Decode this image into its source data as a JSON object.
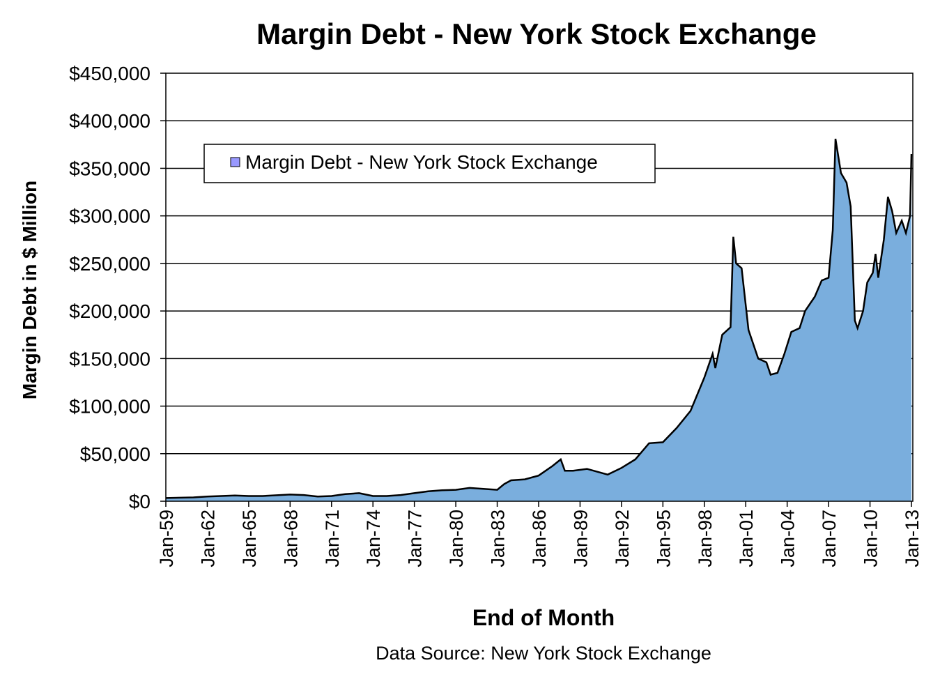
{
  "chart_data": {
    "type": "area",
    "title": "Margin Debt - New York Stock Exchange",
    "xlabel": "End of Month",
    "ylabel": "Margin Debt in $ Million",
    "source": "Data Source: New York Stock Exchange",
    "legend": {
      "label": "Margin Debt - New York Stock Exchange",
      "placement": "top-left"
    },
    "ylim": [
      0,
      450000
    ],
    "xlim": [
      1959,
      2013
    ],
    "grid": true,
    "colors": {
      "fill": "#7aaedd",
      "line": "#000000",
      "legend_swatch": "#9999ff"
    },
    "yticks": [
      0,
      50000,
      100000,
      150000,
      200000,
      250000,
      300000,
      350000,
      400000,
      450000
    ],
    "ytick_labels": [
      "$0",
      "$50,000",
      "$100,000",
      "$150,000",
      "$200,000",
      "$250,000",
      "$300,000",
      "$350,000",
      "$400,000",
      "$450,000"
    ],
    "xtick_labels": [
      "Jan-59",
      "Jan-62",
      "Jan-65",
      "Jan-68",
      "Jan-71",
      "Jan-74",
      "Jan-77",
      "Jan-80",
      "Jan-83",
      "Jan-86",
      "Jan-89",
      "Jan-92",
      "Jan-95",
      "Jan-98",
      "Jan-01",
      "Jan-04",
      "Jan-07",
      "Jan-10",
      "Jan-13"
    ],
    "series": [
      {
        "name": "Margin Debt - New York Stock Exchange",
        "x": [
          1959,
          1961,
          1962,
          1964,
          1965,
          1966,
          1968,
          1969,
          1970,
          1971,
          1972,
          1973,
          1974,
          1975,
          1976,
          1977,
          1978,
          1979,
          1980,
          1981,
          1982,
          1983,
          1983.5,
          1984,
          1985,
          1986,
          1987,
          1987.6,
          1987.9,
          1988.5,
          1989.5,
          1990.5,
          1991,
          1992,
          1993,
          1994,
          1995,
          1996,
          1997,
          1998,
          1998.6,
          1998.8,
          1999.3,
          1999.9,
          2000.1,
          2000.3,
          2000.7,
          2001.2,
          2001.9,
          2002.5,
          2002.8,
          2003.3,
          2003.8,
          2004.3,
          2004.9,
          2005.3,
          2006,
          2006.5,
          2007,
          2007.3,
          2007.5,
          2007.9,
          2008.3,
          2008.6,
          2008.9,
          2009.1,
          2009.5,
          2009.8,
          2010.2,
          2010.4,
          2010.6,
          2011,
          2011.3,
          2011.6,
          2011.9,
          2012.3,
          2012.6,
          2012.9,
          2013
        ],
        "values": [
          3400,
          4000,
          5000,
          6000,
          5500,
          5500,
          7000,
          6500,
          5000,
          5500,
          7500,
          8500,
          5500,
          5500,
          6500,
          8500,
          10500,
          11500,
          12000,
          14000,
          13000,
          12000,
          18000,
          22000,
          23000,
          27000,
          37000,
          44000,
          32000,
          32000,
          34000,
          30000,
          28000,
          35000,
          44000,
          61000,
          62000,
          77000,
          95000,
          130000,
          155000,
          140000,
          175000,
          183000,
          278000,
          250000,
          245000,
          180000,
          150000,
          146000,
          133000,
          135000,
          155000,
          178000,
          182000,
          200000,
          215000,
          232000,
          235000,
          285000,
          381000,
          345000,
          335000,
          310000,
          190000,
          182000,
          200000,
          230000,
          240000,
          260000,
          235000,
          275000,
          320000,
          305000,
          282000,
          295000,
          282000,
          300000,
          365000
        ]
      }
    ]
  }
}
